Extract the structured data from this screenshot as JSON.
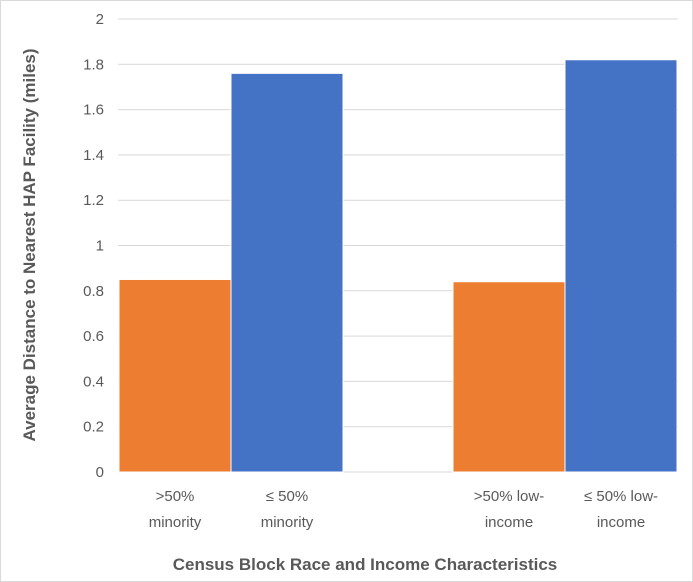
{
  "chart_data": {
    "type": "bar",
    "title": "",
    "xlabel": "Census Block Race and Income Characteristics",
    "ylabel": "Average Distance to Nearest HAP Facility (miles)",
    "ylim": [
      0,
      2
    ],
    "yticks": [
      "0",
      "0.2",
      "0.4",
      "0.6",
      "0.8",
      "1",
      "1.2",
      "1.4",
      "1.6",
      "1.8",
      "2"
    ],
    "grid": true,
    "legend": "none",
    "bars": [
      {
        "label_line1": ">50%",
        "label_line2": "minority",
        "value": 0.85,
        "color": "#ed7d31"
      },
      {
        "label_line1": "≤ 50%",
        "label_line2": "minority",
        "value": 1.76,
        "color": "#4472c4"
      },
      {
        "label_line1": ">50% low-",
        "label_line2": "income",
        "value": 0.84,
        "color": "#ed7d31"
      },
      {
        "label_line1": "≤ 50% low-",
        "label_line2": "income",
        "value": 1.82,
        "color": "#4472c4"
      }
    ]
  }
}
